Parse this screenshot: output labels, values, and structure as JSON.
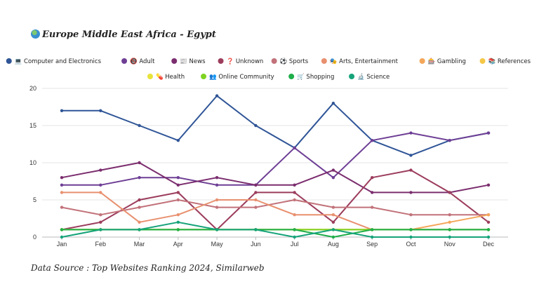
{
  "header": {
    "title": "Europe Middle East Africa - Egypt",
    "globe_icon": "globe-icon"
  },
  "footer": {
    "source": "Data Source : Top Websites Ranking 2024, Similarweb"
  },
  "chart_data": {
    "type": "line",
    "title": "Europe Middle East Africa - Egypt",
    "xlabel": "",
    "ylabel": "",
    "ylim": [
      0,
      20
    ],
    "yticks": [
      "0",
      "5",
      "10",
      "15",
      "20"
    ],
    "categories": [
      "Jan",
      "Feb",
      "Mar",
      "Apr",
      "May",
      "Jun",
      "Jul",
      "Aug",
      "Sep",
      "Oct",
      "Nov",
      "Dec"
    ],
    "legend_position": "top",
    "grid": true,
    "series": [
      {
        "name": "💻 Computer and Electronics",
        "color": "#2f5597",
        "values": [
          17,
          17,
          15,
          13,
          19,
          15,
          12,
          18,
          13,
          11,
          13,
          14
        ]
      },
      {
        "name": "🔞 Adult",
        "color": "#6e3f95",
        "values": [
          7,
          7,
          8,
          8,
          7,
          7,
          12,
          8,
          13,
          14,
          13,
          14
        ]
      },
      {
        "name": "📰 News",
        "color": "#7b2d6e",
        "values": [
          8,
          9,
          10,
          7,
          8,
          7,
          7,
          9,
          6,
          6,
          6,
          7
        ]
      },
      {
        "name": "❓ Unknown",
        "color": "#9c3d5c",
        "values": [
          1,
          2,
          5,
          6,
          1,
          6,
          6,
          2,
          8,
          9,
          6,
          2
        ]
      },
      {
        "name": "⚽ Sports",
        "color": "#c2727a",
        "values": [
          4,
          3,
          4,
          5,
          4,
          4,
          5,
          4,
          4,
          3,
          3,
          3
        ]
      },
      {
        "name": "🎭 Arts, Entertainment",
        "color": "#e8906f",
        "values": [
          6,
          6,
          2,
          3,
          5,
          5,
          3,
          3,
          1,
          1,
          1,
          1
        ]
      },
      {
        "name": "🎰 Gambling",
        "color": "#f4a65a",
        "values": [
          1,
          1,
          1,
          1,
          1,
          1,
          1,
          1,
          1,
          1,
          2,
          3
        ]
      },
      {
        "name": "📚 References",
        "color": "#f5c747",
        "values": [
          1,
          1,
          1,
          1,
          1,
          1,
          1,
          1,
          1,
          1,
          1,
          1
        ]
      },
      {
        "name": "💊 Health",
        "color": "#e7e33a",
        "values": [
          1,
          1,
          1,
          1,
          1,
          1,
          1,
          1,
          1,
          1,
          1,
          1
        ]
      },
      {
        "name": "👥 Online Community",
        "color": "#7ed321",
        "values": [
          1,
          1,
          1,
          1,
          1,
          1,
          1,
          1,
          1,
          1,
          1,
          1
        ]
      },
      {
        "name": "🛒 Shopping",
        "color": "#1fae4a",
        "values": [
          1,
          1,
          1,
          1,
          1,
          1,
          1,
          0,
          1,
          1,
          1,
          1
        ]
      },
      {
        "name": "🔬 Science",
        "color": "#16a37a",
        "values": [
          0,
          1,
          1,
          2,
          1,
          1,
          0,
          1,
          0,
          0,
          0,
          0
        ]
      }
    ]
  }
}
